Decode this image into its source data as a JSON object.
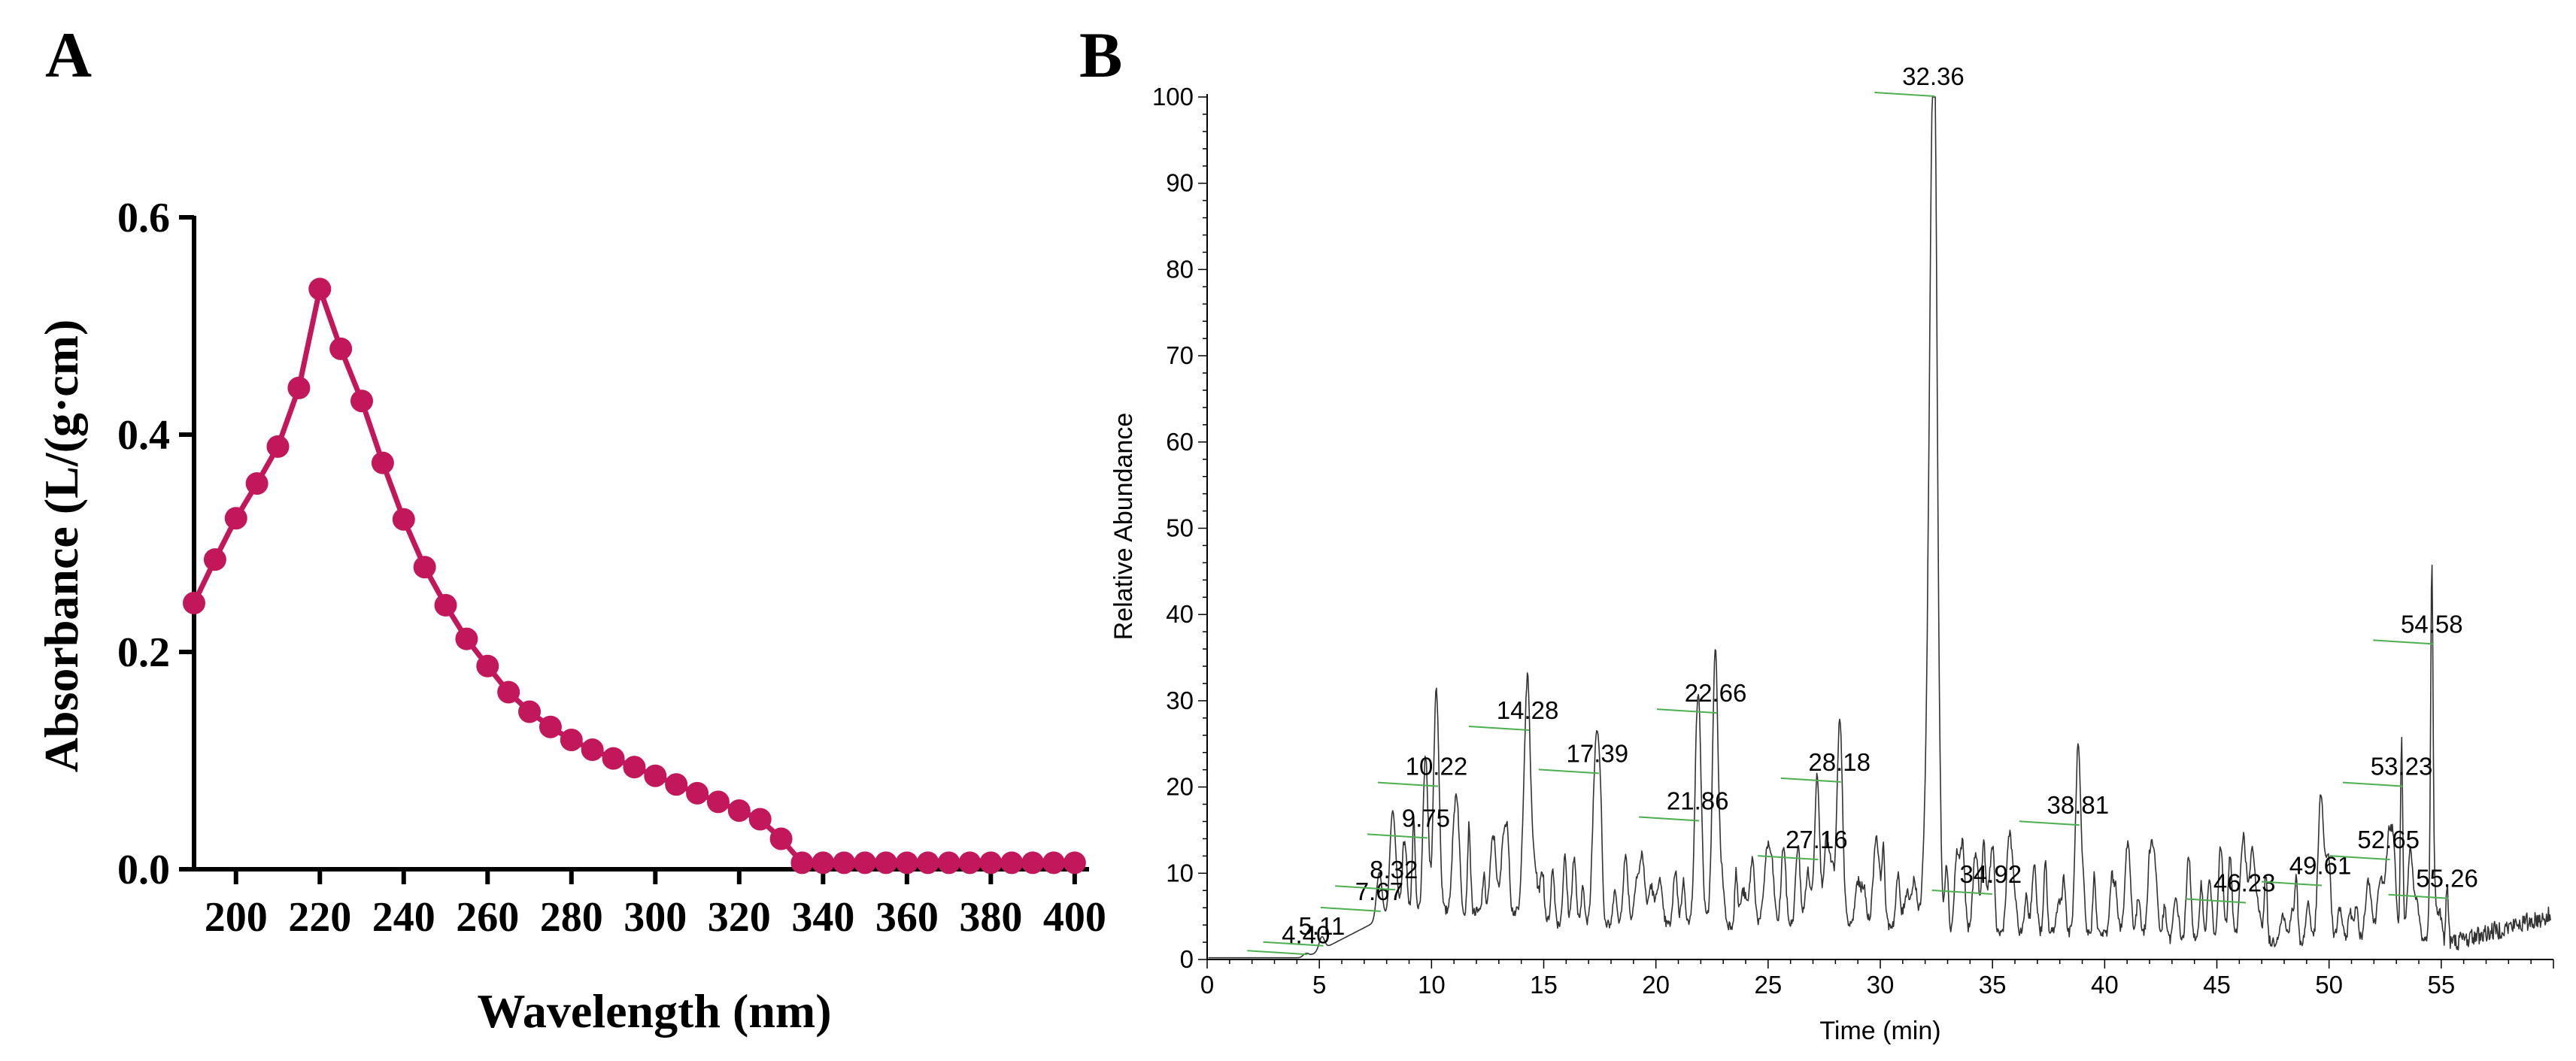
{
  "panels": {
    "a": "A",
    "b": "B"
  },
  "colors": {
    "series_a": "#c2185b",
    "trace_b": "#333333",
    "marker_b": "#4caf50"
  },
  "chart_data": [
    {
      "id": "A",
      "type": "line",
      "xlabel": "Wavelength (nm)",
      "ylabel": "Absorbance (L/(g·cm)",
      "xlim": [
        190,
        402
      ],
      "ylim": [
        0,
        0.6
      ],
      "xticks": [
        200,
        220,
        240,
        260,
        280,
        300,
        320,
        340,
        360,
        380,
        400
      ],
      "yticks": [
        0.0,
        0.2,
        0.4,
        0.6
      ],
      "xtick_labels": [
        "200",
        "220",
        "240",
        "260",
        "280",
        "300",
        "320",
        "340",
        "360",
        "380",
        "400"
      ],
      "ytick_labels": [
        "0.0",
        "0.2",
        "0.4",
        "0.6"
      ],
      "series": [
        {
          "name": "Absorbance",
          "marker": "circle",
          "x": [
            190,
            195,
            200,
            205,
            210,
            215,
            220,
            225,
            230,
            235,
            240,
            245,
            250,
            255,
            260,
            265,
            270,
            275,
            280,
            285,
            290,
            295,
            300,
            305,
            310,
            315,
            320,
            325,
            330,
            335,
            340,
            345,
            350,
            355,
            360,
            365,
            370,
            375,
            380,
            385,
            390,
            395,
            400
          ],
          "y": [
            0.245,
            0.285,
            0.323,
            0.355,
            0.389,
            0.443,
            0.534,
            0.479,
            0.431,
            0.374,
            0.322,
            0.278,
            0.243,
            0.212,
            0.187,
            0.163,
            0.145,
            0.131,
            0.119,
            0.11,
            0.102,
            0.094,
            0.086,
            0.078,
            0.07,
            0.062,
            0.054,
            0.046,
            0.028,
            0.006,
            0.006,
            0.006,
            0.006,
            0.006,
            0.006,
            0.006,
            0.006,
            0.006,
            0.006,
            0.006,
            0.006,
            0.006,
            0.006
          ]
        }
      ]
    },
    {
      "id": "B",
      "type": "line",
      "xlabel": "Time (min)",
      "ylabel": "Relative Abundance",
      "xlim": [
        0,
        60
      ],
      "ylim": [
        0,
        100
      ],
      "xticks": [
        0,
        5,
        10,
        15,
        20,
        25,
        30,
        35,
        40,
        45,
        50,
        55
      ],
      "yticks": [
        0,
        10,
        20,
        30,
        40,
        50,
        60,
        70,
        80,
        90,
        100
      ],
      "xtick_labels": [
        "0",
        "5",
        "10",
        "15",
        "20",
        "25",
        "30",
        "35",
        "40",
        "45",
        "50",
        "55"
      ],
      "ytick_labels": [
        "0",
        "10",
        "20",
        "30",
        "40",
        "50",
        "60",
        "70",
        "80",
        "90",
        "100"
      ],
      "peaks": [
        {
          "rt": 4.4,
          "y": 0.5,
          "label": "4.40"
        },
        {
          "rt": 5.11,
          "y": 1.5,
          "label": "5.11"
        },
        {
          "rt": 7.67,
          "y": 5.5,
          "label": "7.67"
        },
        {
          "rt": 8.32,
          "y": 8,
          "label": "8.32"
        },
        {
          "rt": 9.75,
          "y": 14,
          "label": "9.75"
        },
        {
          "rt": 10.22,
          "y": 20,
          "label": "10.22"
        },
        {
          "rt": 14.28,
          "y": 26.5,
          "label": "14.28"
        },
        {
          "rt": 17.39,
          "y": 21.5,
          "label": "17.39"
        },
        {
          "rt": 21.86,
          "y": 16,
          "label": "21.86"
        },
        {
          "rt": 22.66,
          "y": 28.5,
          "label": "22.66"
        },
        {
          "rt": 27.16,
          "y": 11.5,
          "label": "27.16"
        },
        {
          "rt": 28.18,
          "y": 20.5,
          "label": "28.18"
        },
        {
          "rt": 32.36,
          "y": 100,
          "label": "32.36"
        },
        {
          "rt": 34.92,
          "y": 7.5,
          "label": "34.92"
        },
        {
          "rt": 38.81,
          "y": 15.5,
          "label": "38.81"
        },
        {
          "rt": 46.23,
          "y": 6.5,
          "label": "46.23"
        },
        {
          "rt": 49.61,
          "y": 8.5,
          "label": "49.61"
        },
        {
          "rt": 52.65,
          "y": 11.5,
          "label": "52.65"
        },
        {
          "rt": 53.23,
          "y": 20,
          "label": "53.23"
        },
        {
          "rt": 54.58,
          "y": 36.5,
          "label": "54.58"
        },
        {
          "rt": 55.26,
          "y": 7,
          "label": "55.26"
        }
      ]
    }
  ]
}
